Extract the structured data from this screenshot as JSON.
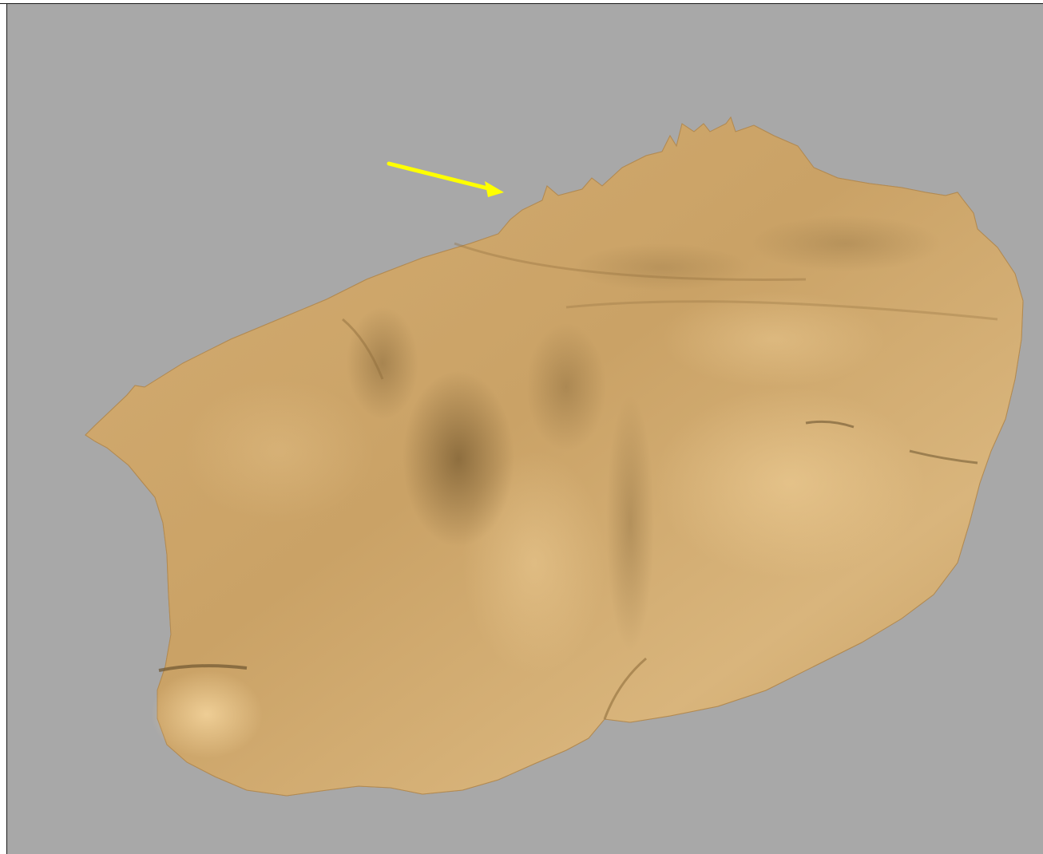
{
  "viewer": {
    "background_color": "#a8a8a8",
    "frame_color": "#1a1a1a",
    "object": {
      "description_icon": "3d-mesh-rock",
      "base_color": "#d9b37a",
      "light_color": "#f0cf95",
      "mid_color": "#c9a366",
      "shadow_color": "#8f6e3c",
      "deep_shadow_color": "#6e5530"
    },
    "annotation": {
      "icon": "arrow-icon",
      "color": "#ffff00"
    }
  }
}
